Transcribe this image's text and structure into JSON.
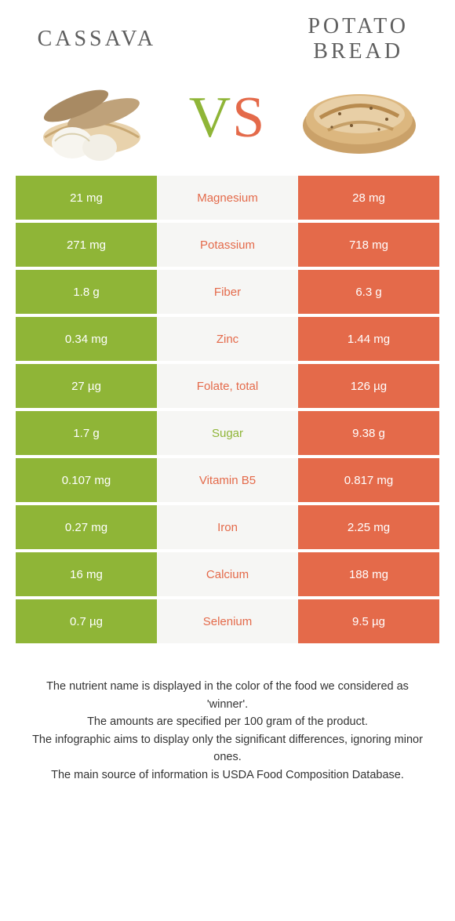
{
  "colors": {
    "left": "#8fb537",
    "right": "#e46a4a",
    "neutral_bg": "#f6f6f4",
    "title_text": "#5f5f5f",
    "footer_text": "#333333"
  },
  "left_food": {
    "title": "Cassava"
  },
  "right_food": {
    "title": "Potato bread"
  },
  "rows": [
    {
      "label": "Magnesium",
      "left": "21 mg",
      "right": "28 mg",
      "winner": "right"
    },
    {
      "label": "Potassium",
      "left": "271 mg",
      "right": "718 mg",
      "winner": "right"
    },
    {
      "label": "Fiber",
      "left": "1.8 g",
      "right": "6.3 g",
      "winner": "right"
    },
    {
      "label": "Zinc",
      "left": "0.34 mg",
      "right": "1.44 mg",
      "winner": "right"
    },
    {
      "label": "Folate, total",
      "left": "27 µg",
      "right": "126 µg",
      "winner": "right"
    },
    {
      "label": "Sugar",
      "left": "1.7 g",
      "right": "9.38 g",
      "winner": "left"
    },
    {
      "label": "Vitamin B5",
      "left": "0.107 mg",
      "right": "0.817 mg",
      "winner": "right"
    },
    {
      "label": "Iron",
      "left": "0.27 mg",
      "right": "2.25 mg",
      "winner": "right"
    },
    {
      "label": "Calcium",
      "left": "16 mg",
      "right": "188 mg",
      "winner": "right"
    },
    {
      "label": "Selenium",
      "left": "0.7 µg",
      "right": "9.5 µg",
      "winner": "right"
    }
  ],
  "footer_lines": [
    "The nutrient name is displayed in the color of the food we considered as 'winner'.",
    "The amounts are specified per 100 gram of the product.",
    "The infographic aims to display only the significant differences, ignoring minor ones.",
    "The main source of information is USDA Food Composition Database."
  ]
}
